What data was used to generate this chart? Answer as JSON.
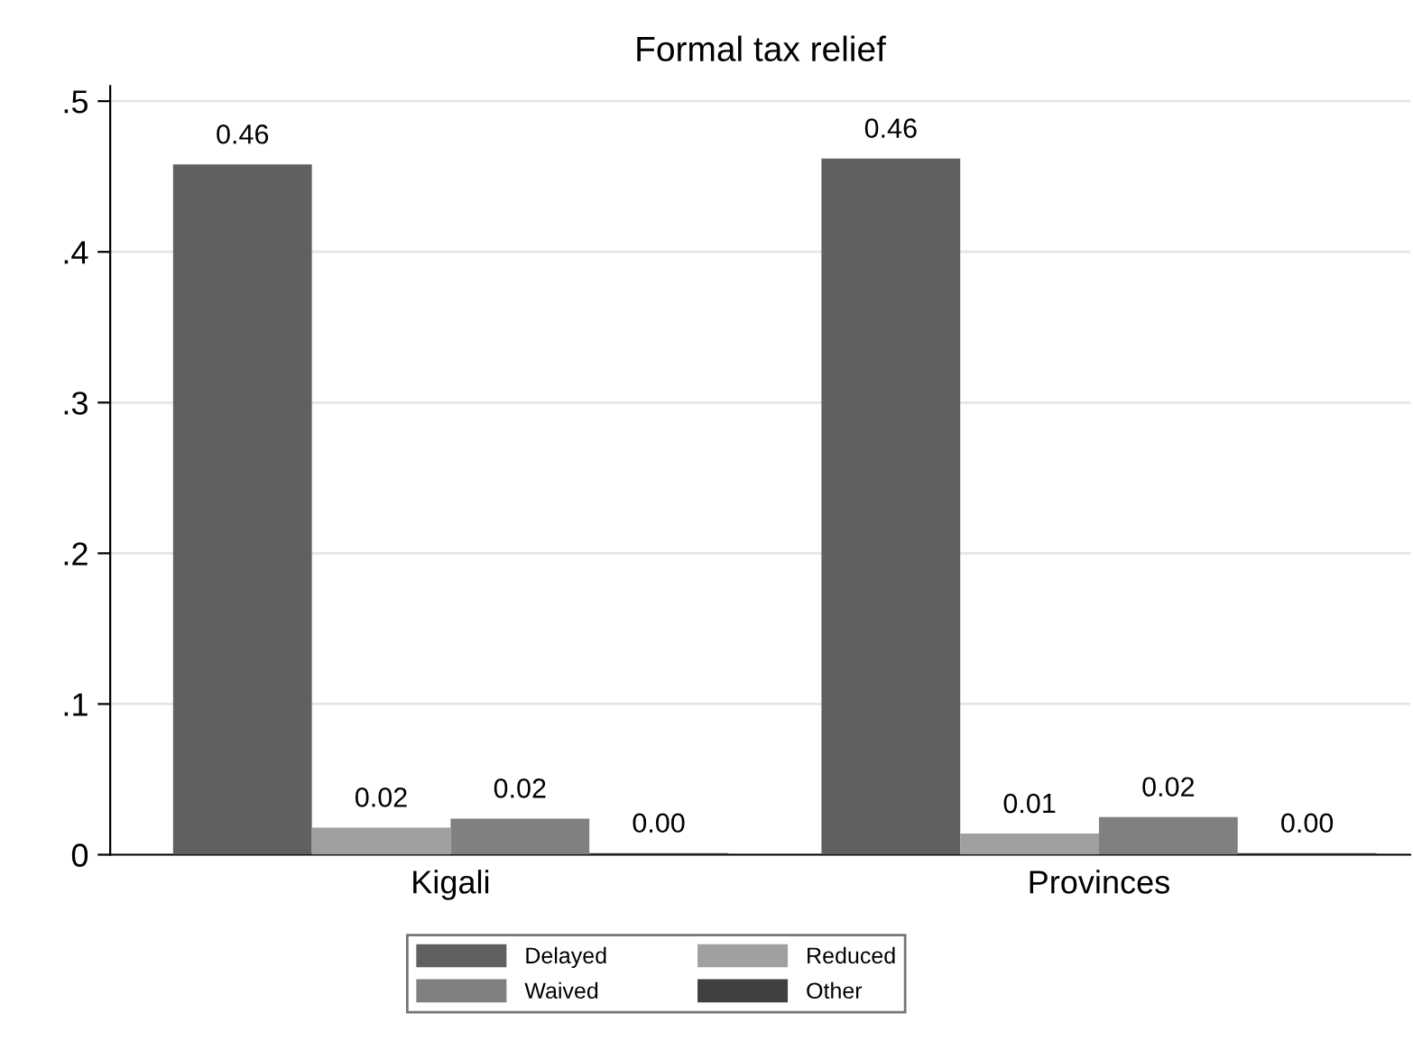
{
  "chart_data": {
    "type": "bar",
    "title": "Formal tax relief",
    "categories": [
      "Kigali",
      "Provinces"
    ],
    "series": [
      {
        "name": "Delayed",
        "color": "#606060",
        "values": [
          0.458,
          0.462
        ],
        "value_labels": [
          "0.46",
          "0.46"
        ]
      },
      {
        "name": "Reduced",
        "color": "#a0a0a0",
        "values": [
          0.018,
          0.014
        ],
        "value_labels": [
          "0.02",
          "0.01"
        ]
      },
      {
        "name": "Waived",
        "color": "#808080",
        "values": [
          0.024,
          0.025
        ],
        "value_labels": [
          "0.02",
          "0.02"
        ]
      },
      {
        "name": "Other",
        "color": "#404040",
        "values": [
          0.001,
          0.001
        ],
        "value_labels": [
          "0.00",
          "0.00"
        ]
      }
    ],
    "ylim": [
      0,
      0.51
    ],
    "yticks": [
      {
        "value": 0,
        "label": "0"
      },
      {
        "value": 0.1,
        "label": ".1"
      },
      {
        "value": 0.2,
        "label": ".2"
      },
      {
        "value": 0.3,
        "label": ".3"
      },
      {
        "value": 0.4,
        "label": ".4"
      },
      {
        "value": 0.5,
        "label": ".5"
      }
    ],
    "grid": "y",
    "legend": "bottom"
  }
}
